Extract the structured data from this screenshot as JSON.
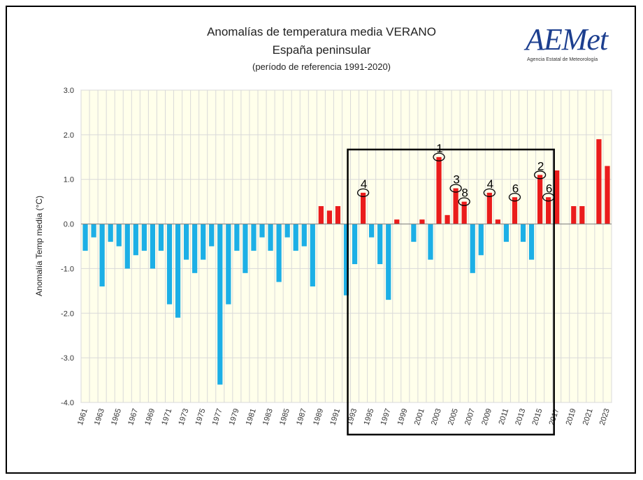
{
  "header": {
    "title": "Anomalías de temperatura media VERANO",
    "subtitle": "España peninsular",
    "reference": "(período de referencia 1991-2020)"
  },
  "logo": {
    "text": "AEMet",
    "subtitle": "Agencia Estatal de Meteorología"
  },
  "colors": {
    "negative": "#1cafe6",
    "positive": "#ea1c1c",
    "grid": "#d9d9d9",
    "background": "#ffffeb"
  },
  "chart_data": {
    "type": "bar",
    "ylabel": "Anomalía Temp media (°C)",
    "ylim": [
      -4.0,
      3.0
    ],
    "yticks": [
      "3.0",
      "2.0",
      "1.0",
      "0.0",
      "-1.0",
      "-2.0",
      "-3.0",
      "-4.0"
    ],
    "grid": true,
    "categories": [
      "1961",
      "1962",
      "1963",
      "1964",
      "1965",
      "1966",
      "1967",
      "1968",
      "1969",
      "1970",
      "1971",
      "1972",
      "1973",
      "1974",
      "1975",
      "1976",
      "1977",
      "1978",
      "1979",
      "1980",
      "1981",
      "1982",
      "1983",
      "1984",
      "1985",
      "1986",
      "1987",
      "1988",
      "1989",
      "1990",
      "1991",
      "1992",
      "1993",
      "1994",
      "1995",
      "1996",
      "1997",
      "1998",
      "1999",
      "2000",
      "2001",
      "2002",
      "2003",
      "2004",
      "2005",
      "2006",
      "2007",
      "2008",
      "2009",
      "2010",
      "2011",
      "2012",
      "2013",
      "2014",
      "2015",
      "2016",
      "2017",
      "2018",
      "2019",
      "2020",
      "2021",
      "2022",
      "2023"
    ],
    "xtick_labels": [
      "1961",
      "1963",
      "1965",
      "1967",
      "1969",
      "1971",
      "1973",
      "1975",
      "1977",
      "1979",
      "1981",
      "1983",
      "1985",
      "1987",
      "1989",
      "1991",
      "1993",
      "1995",
      "1997",
      "1999",
      "2001",
      "2003",
      "2005",
      "2007",
      "2009",
      "2011",
      "2013",
      "2015",
      "2017",
      "2019",
      "2021",
      "2023"
    ],
    "values": [
      -0.6,
      -0.3,
      -1.4,
      -0.4,
      -0.5,
      -1.0,
      -0.7,
      -0.6,
      -1.0,
      -0.6,
      -1.8,
      -2.1,
      -0.8,
      -1.1,
      -0.8,
      -0.5,
      -3.6,
      -1.8,
      -0.6,
      -1.1,
      -0.6,
      -0.3,
      -0.6,
      -1.3,
      -0.3,
      -0.6,
      -0.5,
      -1.4,
      0.4,
      0.3,
      0.4,
      -1.6,
      -0.9,
      0.7,
      -0.3,
      -0.9,
      -1.7,
      0.1,
      0.0,
      -0.4,
      0.1,
      -0.8,
      1.5,
      0.2,
      0.8,
      0.5,
      -1.1,
      -0.7,
      0.7,
      0.1,
      -0.4,
      0.6,
      -0.4,
      -0.8,
      1.1,
      0.6,
      1.2,
      0.0,
      0.4,
      0.4,
      0.0,
      1.9,
      1.3
    ],
    "annotations": [
      {
        "year": "1994",
        "label": "4"
      },
      {
        "year": "2003",
        "label": "1"
      },
      {
        "year": "2005",
        "label": "3"
      },
      {
        "year": "2006",
        "label": "8"
      },
      {
        "year": "2009",
        "label": "4"
      },
      {
        "year": "2012",
        "label": "6"
      },
      {
        "year": "2015",
        "label": "2"
      },
      {
        "year": "2016",
        "label": "6"
      }
    ],
    "highlight_range": [
      "1993",
      "2016"
    ]
  }
}
